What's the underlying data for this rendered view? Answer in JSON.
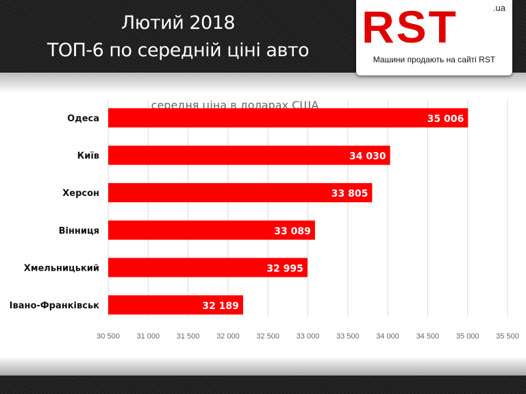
{
  "header": {
    "title_line1": "Лютий 2018",
    "title_line2": "ТОП-6 по середній ціні авто"
  },
  "logo": {
    "text": "RST",
    "domain": ".ua",
    "slogan": "Машини продають на сайті RST"
  },
  "colors": {
    "bar": "#ff0000",
    "grid": "#d9d9d9"
  },
  "chart_data": {
    "type": "bar",
    "orientation": "horizontal",
    "title": "середня ціна в доларах США",
    "categories": [
      "Одеса",
      "Київ",
      "Херсон",
      "Вінниця",
      "Хмельницький",
      "Івано-Франківськ"
    ],
    "values": [
      35006,
      34030,
      33805,
      33089,
      32995,
      32189
    ],
    "data_labels": [
      "35 006",
      "34 030",
      "33 805",
      "33 089",
      "32 995",
      "32 189"
    ],
    "xlim": [
      30500,
      35500
    ],
    "xticks": [
      30500,
      31000,
      31500,
      32000,
      32500,
      33000,
      33500,
      34000,
      34500,
      35000,
      35500
    ],
    "xtick_labels": [
      "30 500",
      "31 000",
      "31 500",
      "32 000",
      "32 500",
      "33 000",
      "33 500",
      "34 000",
      "34 500",
      "35 000",
      "35 500"
    ],
    "grid": true
  }
}
